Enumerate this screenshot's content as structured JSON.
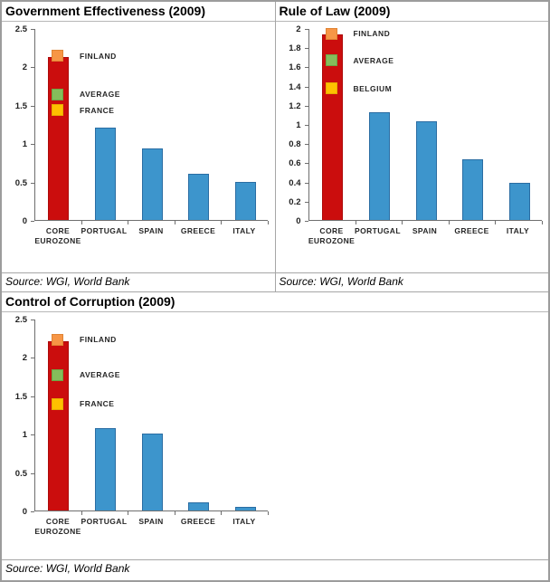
{
  "palette": {
    "core_bar": "#CB0D0D",
    "core_bar_border": "#AD0A0A",
    "peer_bar": "#3D95CC",
    "peer_bar_border": "#2A6DA3",
    "orange": "#F79646",
    "orange_border": "#E08433",
    "green": "#85BD5B",
    "green_border": "#6DA544",
    "yellow": "#FFC000",
    "yellow_border": "#E6AD00",
    "axis_line": "#6E6E6E",
    "grid_border": "#A6A6A6"
  },
  "chart_data": [
    {
      "type": "bar",
      "title": "Government Effectiveness (2009)",
      "source": "Source: WGI, World Bank",
      "categories": [
        "CORE EUROZONE",
        "PORTUGAL",
        "SPAIN",
        "GREECE",
        "ITALY"
      ],
      "values": [
        2.12,
        1.2,
        0.93,
        0.6,
        0.5
      ],
      "highlight_index": 0,
      "ylim": [
        0,
        2.5
      ],
      "yticks": [
        "0",
        "0.5",
        "1",
        "1.5",
        "2",
        "2.5"
      ],
      "legend_position": "inside-right-of-core-bar",
      "grid": false,
      "markers": [
        {
          "label": "FINLAND",
          "value": 2.15,
          "color": "orange"
        },
        {
          "label": "AVERAGE",
          "value": 1.65,
          "color": "green"
        },
        {
          "label": "FRANCE",
          "value": 1.44,
          "color": "yellow"
        }
      ]
    },
    {
      "type": "bar",
      "title": "Rule of Law (2009)",
      "source": "Source: WGI, World Bank",
      "categories": [
        "CORE EUROZONE",
        "PORTUGAL",
        "SPAIN",
        "GREECE",
        "ITALY"
      ],
      "values": [
        1.93,
        1.12,
        1.03,
        0.63,
        0.39
      ],
      "highlight_index": 0,
      "ylim": [
        0,
        2
      ],
      "yticks": [
        "0",
        "0.2",
        "0.4",
        "0.6",
        "0.8",
        "1",
        "1.2",
        "1.4",
        "1.6",
        "1.8",
        "2"
      ],
      "legend_position": "inside-right-of-core-bar",
      "grid": false,
      "markers": [
        {
          "label": "FINLAND",
          "value": 1.95,
          "color": "orange"
        },
        {
          "label": "AVERAGE",
          "value": 1.67,
          "color": "green"
        },
        {
          "label": "BELGIUM",
          "value": 1.38,
          "color": "yellow"
        }
      ]
    },
    {
      "type": "bar",
      "title": "Control of Corruption (2009)",
      "source": "Source: WGI, World Bank",
      "categories": [
        "CORE EUROZONE",
        "PORTUGAL",
        "SPAIN",
        "GREECE",
        "ITALY"
      ],
      "values": [
        2.21,
        1.07,
        1.0,
        0.11,
        0.05
      ],
      "highlight_index": 0,
      "ylim": [
        0,
        2.5
      ],
      "yticks": [
        "0",
        "0.5",
        "1",
        "1.5",
        "2",
        "2.5"
      ],
      "legend_position": "inside-right-of-core-bar",
      "grid": false,
      "markers": [
        {
          "label": "FINLAND",
          "value": 2.24,
          "color": "orange"
        },
        {
          "label": "AVERAGE",
          "value": 1.78,
          "color": "green"
        },
        {
          "label": "FRANCE",
          "value": 1.4,
          "color": "yellow"
        }
      ]
    }
  ]
}
